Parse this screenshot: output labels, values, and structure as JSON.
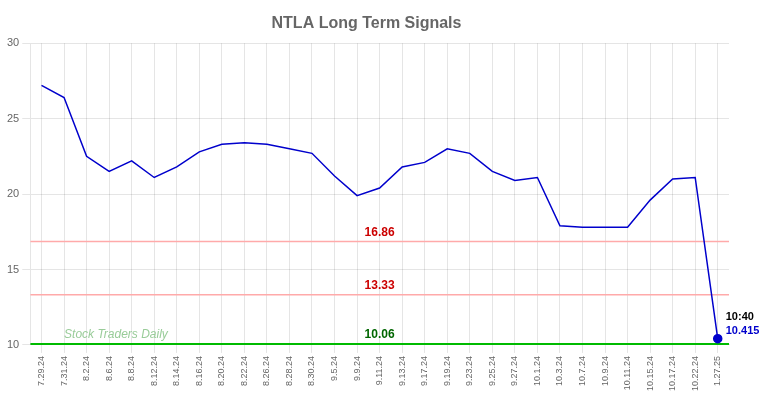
{
  "chart_data": {
    "type": "line",
    "title": "NTLA Long Term Signals",
    "categories": [
      "7.29.24",
      "7.31.24",
      "8.2.24",
      "8.6.24",
      "8.8.24",
      "8.12.24",
      "8.14.24",
      "8.16.24",
      "8.20.24",
      "8.22.24",
      "8.26.24",
      "8.28.24",
      "8.30.24",
      "9.5.24",
      "9.9.24",
      "9.11.24",
      "9.13.24",
      "9.17.24",
      "9.19.24",
      "9.23.24",
      "9.25.24",
      "9.27.24",
      "10.1.24",
      "10.3.24",
      "10.7.24",
      "10.9.24",
      "10.11.24",
      "10.15.24",
      "10.17.24",
      "10.22.24",
      "1.27.25"
    ],
    "values": [
      27.2,
      26.4,
      22.5,
      21.5,
      22.2,
      21.1,
      21.8,
      22.8,
      23.3,
      23.4,
      23.3,
      23.0,
      22.7,
      21.2,
      19.9,
      20.4,
      21.8,
      22.1,
      23.0,
      22.7,
      21.5,
      20.9,
      21.1,
      17.9,
      17.8,
      17.8,
      17.8,
      19.6,
      21.0,
      21.1,
      10.415
    ],
    "color": "#0000cc",
    "marker": "last",
    "ylim": [
      10,
      30
    ],
    "yticks": [
      10,
      15,
      20,
      25,
      30
    ],
    "grid": true,
    "hlines": [
      {
        "value": 16.86,
        "label": "16.86",
        "color": "#ffaaaa",
        "label_color": "#cc0000"
      },
      {
        "value": 13.33,
        "label": "13.33",
        "color": "#ffaaaa",
        "label_color": "#cc0000"
      },
      {
        "value": 10.06,
        "label": "10.06",
        "color": "#00bb00",
        "label_color": "#006600"
      }
    ],
    "watermark": {
      "text": "Stock Traders Daily",
      "color": "#99cc99"
    },
    "annotations": [
      {
        "text": "10:40"
      },
      {
        "text": "10.415",
        "color": "#0000cc"
      }
    ]
  }
}
